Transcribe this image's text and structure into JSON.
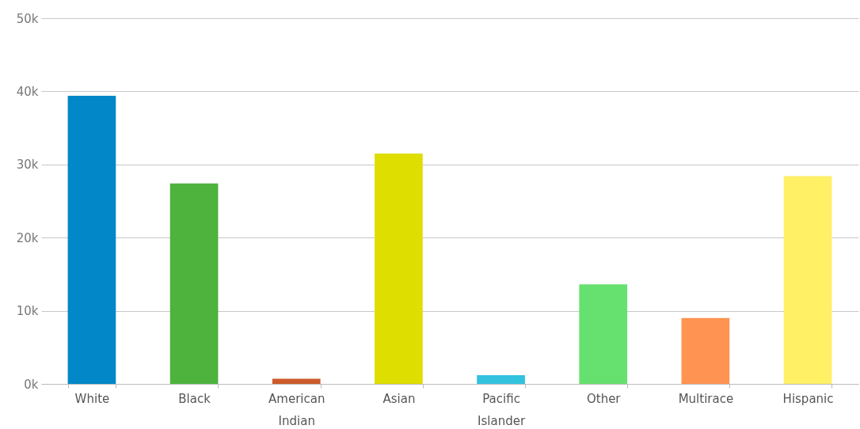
{
  "chart_data": {
    "type": "bar",
    "categories": [
      "White",
      "Black",
      "American Indian",
      "Asian",
      "Pacific Islander",
      "Other",
      "Multirace",
      "Hispanic"
    ],
    "values": [
      39400,
      27400,
      700,
      31500,
      1200,
      13600,
      9000,
      28400
    ],
    "colors": [
      "#0288c8",
      "#4db33d",
      "#cc5a2a",
      "#dede00",
      "#33c2de",
      "#66e06e",
      "#ff9452",
      "#fff066"
    ],
    "ylim": [
      0,
      50000
    ],
    "yticks": [
      {
        "value": 0,
        "label": "0k"
      },
      {
        "value": 10000,
        "label": "10k"
      },
      {
        "value": 20000,
        "label": "20k"
      },
      {
        "value": 30000,
        "label": "30k"
      },
      {
        "value": 40000,
        "label": "40k"
      },
      {
        "value": 50000,
        "label": "50k"
      }
    ],
    "grid": "y"
  }
}
